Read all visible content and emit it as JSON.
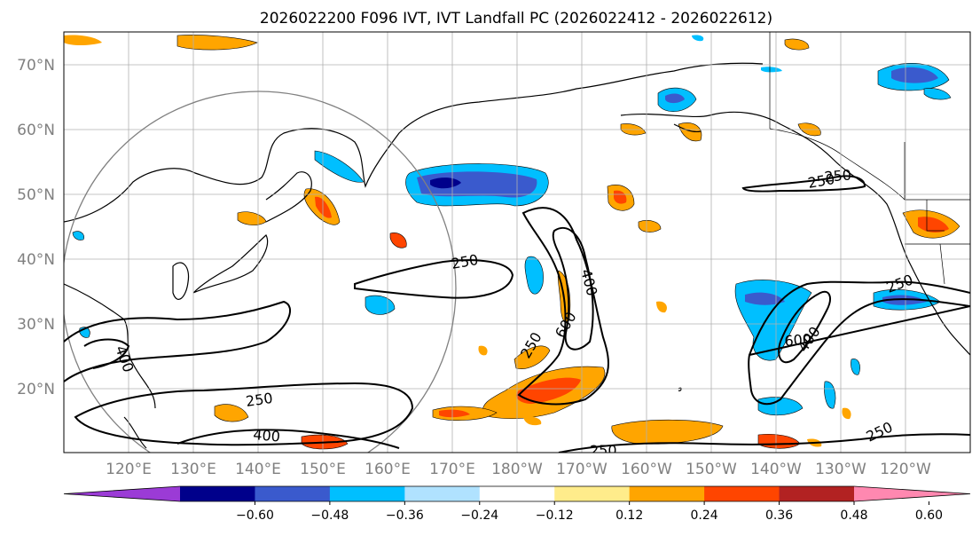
{
  "title": "2026022200 F096 IVT, IVT Landfall PC (2026022412 - 2026022612)",
  "axes": {
    "lat_labels": [
      "70°N",
      "60°N",
      "50°N",
      "40°N",
      "30°N",
      "20°N"
    ],
    "lon_labels": [
      "120°E",
      "130°E",
      "140°E",
      "150°E",
      "160°E",
      "170°E",
      "180°W",
      "170°W",
      "160°W",
      "150°W",
      "140°W",
      "130°W",
      "120°W"
    ]
  },
  "contour_labels": [
    "250",
    "250",
    "400",
    "250",
    "250",
    "400",
    "600",
    "250",
    "250",
    "600",
    "400",
    "250",
    "250",
    "400"
  ],
  "colorbar": {
    "ticks": [
      "−0.60",
      "−0.48",
      "−0.36",
      "−0.24",
      "−0.12",
      "0.12",
      "0.24",
      "0.36",
      "0.48",
      "0.60"
    ],
    "colors": [
      "#9b3bd6",
      "#00008b",
      "#3a5acd",
      "#00bfff",
      "#b0e2ff",
      "#ffffff",
      "#ffec8b",
      "#ffa500",
      "#ff4500",
      "#b22222",
      "#ff88b0"
    ]
  }
}
